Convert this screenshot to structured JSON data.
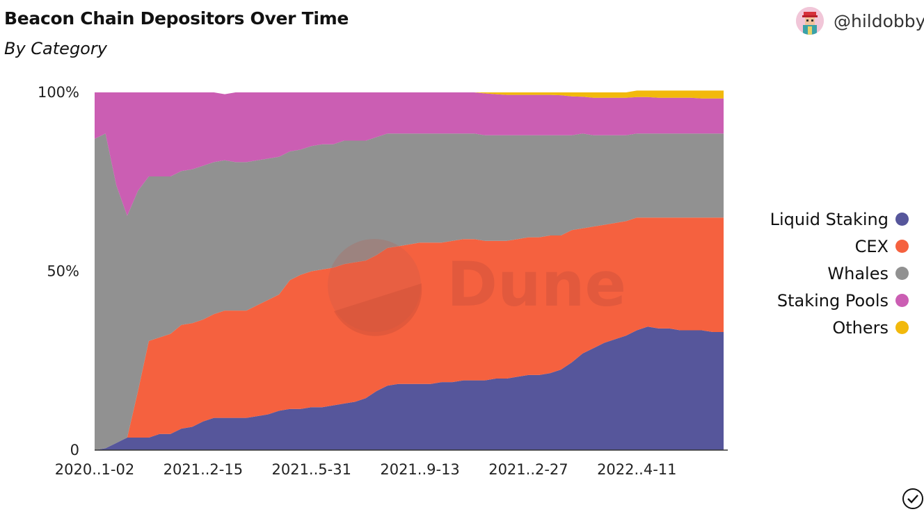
{
  "header": {
    "title": "Beacon Chain Depositors Over Time",
    "subtitle": "By Category",
    "handle": "@hildobby"
  },
  "watermark": {
    "text": "Dune"
  },
  "colors": {
    "liquid_staking": "#56569b",
    "cex": "#f5613f",
    "whales": "#919191",
    "staking_pools": "#cb5eb3",
    "others": "#f2b90c"
  },
  "icons": {
    "avatar": "avatar-icon",
    "check": "checkmark-circle-icon"
  },
  "chart_data": {
    "type": "area",
    "stacked": "percent",
    "title": "Beacon Chain Depositors Over Time",
    "subtitle": "By Category",
    "x_tick_labels": [
      "2020..1-02",
      "2021..2-15",
      "2021..5-31",
      "2021..9-13",
      "2021..2-27",
      "2022..4-11"
    ],
    "y_tick_labels": [
      "0",
      "50%",
      "100%"
    ],
    "ylim": [
      0,
      100
    ],
    "legend_position": "right",
    "grid": false,
    "x_index": [
      0,
      2,
      4,
      6,
      8,
      10,
      12,
      14,
      16,
      18,
      20,
      22,
      24,
      26,
      28,
      30,
      32,
      34,
      36,
      38,
      40,
      42,
      44,
      46,
      48,
      50,
      52,
      54,
      56,
      58,
      60,
      62,
      64,
      66,
      68,
      70,
      72,
      74,
      76,
      78,
      80,
      82,
      84,
      86,
      88,
      90,
      92,
      94,
      96,
      98,
      100,
      102,
      104,
      106,
      108,
      110,
      112,
      114,
      116
    ],
    "series": [
      {
        "name": "Liquid Staking",
        "values": [
          0,
          0.5,
          2,
          3.5,
          3.5,
          3.5,
          4.5,
          4.5,
          6,
          6.5,
          8,
          9,
          9,
          9,
          9,
          9.5,
          10,
          11,
          11.5,
          11.5,
          12,
          12,
          12.5,
          13,
          13.5,
          14.5,
          16.5,
          18,
          18.5,
          18.5,
          18.5,
          18.5,
          19,
          19,
          19.5,
          19.5,
          19.5,
          20,
          20,
          20.5,
          21,
          21,
          21.5,
          22.5,
          24.5,
          27,
          28.5,
          30,
          31,
          32,
          33.5,
          34.5,
          34,
          34,
          33.5,
          33.5,
          33.5,
          33,
          33
        ]
      },
      {
        "name": "CEX",
        "values": [
          0,
          0,
          0,
          0,
          13,
          27,
          27,
          28,
          29,
          29,
          28.5,
          29,
          30,
          30,
          30,
          31,
          32,
          32.5,
          36,
          37.5,
          38,
          38.5,
          38.5,
          39,
          39,
          38.5,
          38,
          38.5,
          38.5,
          39,
          39.5,
          39.5,
          39,
          39.5,
          39.5,
          39.5,
          39,
          38.5,
          38.5,
          38.5,
          38.5,
          38.5,
          38.5,
          37.5,
          37,
          35,
          34,
          33,
          32.5,
          32,
          31.5,
          30.5,
          31,
          31,
          31.5,
          31.5,
          31.5,
          32,
          32
        ]
      },
      {
        "name": "Whales",
        "values": [
          87,
          88,
          72,
          62,
          56,
          46,
          45,
          44,
          43,
          43,
          43,
          42.5,
          42,
          41.5,
          41.5,
          40.5,
          39.5,
          38.5,
          36,
          35,
          35,
          35,
          34.5,
          34.5,
          34,
          33.5,
          33,
          32,
          31.5,
          31,
          30.5,
          30.5,
          30.5,
          30,
          29.5,
          29.5,
          29.5,
          29.5,
          29.5,
          29,
          28.5,
          28.5,
          28,
          28,
          26.5,
          26.5,
          25.5,
          25,
          24.5,
          24,
          23.5,
          23.5,
          23.5,
          23.5,
          23.5,
          23.5,
          23.5,
          23.5,
          23.5
        ]
      },
      {
        "name": "Staking Pools",
        "values": [
          13,
          11.5,
          26,
          34.5,
          27.5,
          23.5,
          23.5,
          23.5,
          22,
          21.5,
          20.5,
          19.5,
          18.5,
          19.5,
          19.5,
          19,
          18.5,
          18,
          16.5,
          16,
          15,
          14.5,
          14.5,
          13.5,
          13.5,
          13.5,
          12.5,
          11.5,
          11.5,
          11.5,
          11.5,
          11.5,
          11.5,
          11.5,
          11.5,
          11.5,
          11.7,
          11.5,
          11.3,
          11.3,
          11.3,
          11.3,
          11.3,
          11.2,
          10.9,
          10.3,
          10.5,
          10.5,
          10.5,
          10.5,
          10.2,
          10.2,
          10,
          10,
          10,
          10,
          9.8,
          9.8,
          9.8
        ]
      },
      {
        "name": "Others",
        "values": [
          0,
          0,
          0,
          0,
          0,
          0,
          0,
          0,
          0,
          0,
          0,
          0,
          0,
          0,
          0,
          0,
          0,
          0,
          0,
          0,
          0,
          0,
          0,
          0,
          0,
          0,
          0,
          0,
          0,
          0,
          0,
          0,
          0,
          0,
          0,
          0,
          0.3,
          0.5,
          0.7,
          0.7,
          0.7,
          0.7,
          0.7,
          0.8,
          1.1,
          1.2,
          1.5,
          1.5,
          1.5,
          1.5,
          1.8,
          1.8,
          2,
          2,
          2,
          2,
          2.2,
          2.2,
          2.2
        ]
      }
    ]
  }
}
